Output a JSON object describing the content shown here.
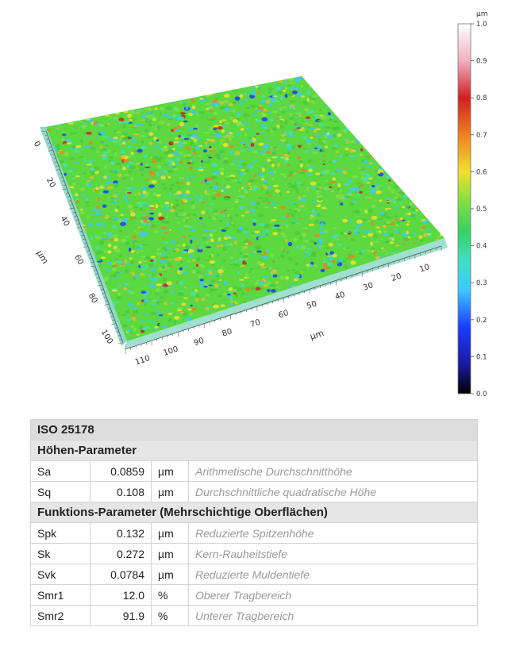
{
  "chart_data": {
    "type": "surface-3d",
    "unit_label": "µm",
    "x_axis": {
      "label": "µm",
      "ticks": [
        "10",
        "20",
        "30",
        "40",
        "50",
        "60",
        "70",
        "80",
        "90",
        "100",
        "110"
      ]
    },
    "y_axis": {
      "label": "µm",
      "ticks": [
        "0",
        "20",
        "40",
        "60",
        "80",
        "100"
      ]
    },
    "colorbar": {
      "unit": "µm",
      "range": [
        0.0,
        1.0
      ],
      "ticks": [
        "1.0",
        "0.9",
        "0.8",
        "0.7",
        "0.6",
        "0.5",
        "0.4",
        "0.3",
        "0.2",
        "0.1",
        "0.0"
      ],
      "colors": [
        "#000000",
        "#2020c0",
        "#1a3cff",
        "#3cc8ff",
        "#40e0c0",
        "#38d060",
        "#80e040",
        "#f0e030",
        "#f08020",
        "#d02020",
        "#f0b0c0",
        "#ffffff"
      ]
    }
  },
  "table": {
    "title": "ISO 25178",
    "sections": [
      {
        "heading": "Höhen-Parameter",
        "rows": [
          {
            "name": "Sa",
            "value": "0.0859",
            "unit": "µm",
            "description": "Arithmetische Durchschnitthöhe"
          },
          {
            "name": "Sq",
            "value": "0.108",
            "unit": "µm",
            "description": "Durchschnittliche quadratische Höhe"
          }
        ]
      },
      {
        "heading": "Funktions-Parameter (Mehrschichtige Oberflächen)",
        "rows": [
          {
            "name": "Spk",
            "value": "0.132",
            "unit": "µm",
            "description": "Reduzierte Spitzenhöhe"
          },
          {
            "name": "Sk",
            "value": "0.272",
            "unit": "µm",
            "description": "Kern-Rauheitstiefe"
          },
          {
            "name": "Svk",
            "value": "0.0784",
            "unit": "µm",
            "description": "Reduzierte Muldentiefe"
          },
          {
            "name": "Smr1",
            "value": "12.0",
            "unit": "%",
            "description": "Oberer Tragbereich"
          },
          {
            "name": "Smr2",
            "value": "91.9",
            "unit": "%",
            "description": "Unterer Tragbereich"
          }
        ]
      }
    ]
  }
}
